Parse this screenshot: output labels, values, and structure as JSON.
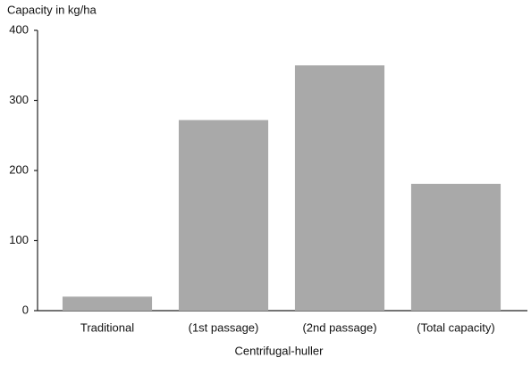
{
  "chart_data": {
    "type": "bar",
    "y_label": "Capacity in kg/ha",
    "x_label": "Centrifugal-huller",
    "categories": [
      "Traditional",
      "(1st passage)",
      "(2nd passage)",
      "(Total capacity)"
    ],
    "values": [
      20,
      272,
      350,
      181
    ],
    "color": "#a9a9a9",
    "ylim": [
      0,
      400
    ],
    "yticks": [
      0,
      100,
      200,
      300,
      400
    ],
    "grid": false
  }
}
